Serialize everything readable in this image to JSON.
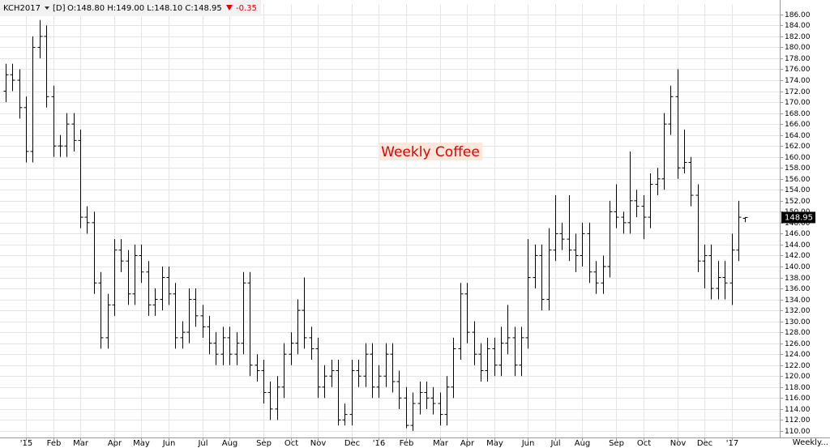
{
  "header": {
    "symbol": "KCH2017",
    "interval": "[D]",
    "quote": "O:148.80 H:149.00 L:148.10 C:148.95",
    "change": "-0.35"
  },
  "chart_data": {
    "type": "ohlc",
    "title": "Weekly Coffee",
    "color": "#000000",
    "grid": true,
    "interval_label": "Weekly...",
    "last_price": 148.95,
    "last_price_label": "148.95",
    "categories": [
      null,
      null,
      null,
      "'15",
      null,
      null,
      null,
      "Feb",
      null,
      null,
      null,
      "Mar",
      null,
      null,
      null,
      null,
      "Apr",
      null,
      null,
      null,
      "May",
      null,
      null,
      null,
      "Jun",
      null,
      null,
      null,
      null,
      "Jul",
      null,
      null,
      null,
      "Aug",
      null,
      null,
      null,
      null,
      "Sep",
      null,
      null,
      null,
      "Oct",
      null,
      null,
      null,
      "Nov",
      null,
      null,
      null,
      null,
      "Dec",
      null,
      null,
      null,
      "'16",
      null,
      null,
      null,
      "Feb",
      null,
      null,
      null,
      null,
      "Mar",
      null,
      null,
      null,
      "Apr",
      null,
      null,
      null,
      "May",
      null,
      null,
      null,
      null,
      "Jun",
      null,
      null,
      null,
      "Jul",
      null,
      null,
      null,
      "Aug",
      null,
      null,
      null,
      null,
      "Sep",
      null,
      null,
      null,
      "Oct",
      null,
      null,
      null,
      null,
      "Nov",
      null,
      null,
      null,
      "Dec",
      null,
      null,
      null,
      "'17",
      null,
      null
    ],
    "open": [
      172,
      175,
      174,
      169,
      161,
      180,
      182,
      171,
      162,
      162,
      166,
      163,
      149,
      148,
      137,
      127,
      133,
      143,
      141,
      135,
      142,
      139,
      133,
      134,
      138,
      135,
      127,
      128,
      134,
      131,
      129,
      126,
      124,
      127,
      124,
      126,
      137,
      122,
      121,
      117,
      114,
      118,
      124,
      126,
      132,
      127,
      125,
      118,
      120,
      121,
      112,
      113,
      121,
      120,
      124,
      118,
      120,
      124,
      119,
      116,
      111,
      115,
      117,
      116,
      115,
      113,
      118,
      125,
      135,
      128,
      124,
      121,
      125,
      122,
      126,
      127,
      122,
      127,
      138,
      142,
      134,
      143,
      146,
      145,
      143,
      142,
      146,
      139,
      137,
      140,
      150,
      149,
      148,
      152,
      151,
      149,
      155,
      156,
      166,
      171,
      158,
      159,
      153,
      141,
      142,
      136,
      138,
      137,
      143,
      148.8
    ],
    "high": [
      177,
      177,
      176,
      171,
      182,
      185,
      184,
      173,
      164,
      168,
      168,
      165,
      151,
      150,
      139,
      135,
      145,
      145,
      143,
      144,
      144,
      141,
      136,
      140,
      140,
      137,
      130,
      136,
      136,
      133,
      131,
      128,
      129,
      129,
      128,
      139,
      139,
      124,
      123,
      119,
      120,
      126,
      128,
      134,
      138,
      129,
      127,
      122,
      123,
      123,
      115,
      123,
      123,
      126,
      126,
      122,
      126,
      126,
      121,
      118,
      117,
      119,
      119,
      118,
      117,
      120,
      127,
      137,
      137,
      130,
      126,
      127,
      127,
      129,
      133,
      129,
      129,
      145,
      144,
      144,
      147,
      153,
      148,
      153,
      146,
      148,
      148,
      141,
      142,
      152,
      155,
      150,
      161,
      154,
      153,
      157,
      158,
      168,
      173,
      176,
      165,
      160,
      155,
      144,
      144,
      141,
      141,
      146,
      152,
      149
    ],
    "low": [
      170,
      172,
      167,
      159,
      159,
      178,
      169,
      160,
      160,
      160,
      161,
      147,
      146,
      135,
      125,
      125,
      131,
      139,
      133,
      133,
      137,
      131,
      131,
      132,
      133,
      125,
      125,
      126,
      129,
      127,
      124,
      122,
      122,
      122,
      122,
      124,
      120,
      119,
      115,
      112,
      112,
      116,
      122,
      124,
      125,
      123,
      116,
      116,
      118,
      111,
      111,
      111,
      118,
      118,
      116,
      116,
      118,
      117,
      114,
      110.5,
      110,
      113,
      114,
      113,
      111,
      111,
      116,
      123,
      126,
      122,
      119,
      119,
      120,
      120,
      124,
      120,
      120,
      125,
      136,
      132,
      132,
      141,
      143,
      141,
      139,
      140,
      137,
      135,
      135,
      138,
      147,
      146,
      146,
      149,
      145,
      147,
      153,
      154,
      164,
      156,
      157,
      151,
      139,
      136,
      134,
      134,
      134,
      133,
      141,
      148.1
    ],
    "close": [
      175,
      174,
      169,
      161,
      180,
      182,
      171,
      162,
      162,
      166,
      163,
      149,
      148,
      137,
      127,
      133,
      143,
      141,
      135,
      142,
      139,
      133,
      134,
      138,
      135,
      127,
      128,
      134,
      131,
      129,
      126,
      124,
      127,
      124,
      126,
      137,
      122,
      121,
      117,
      114,
      118,
      124,
      126,
      132,
      127,
      125,
      118,
      120,
      121,
      112,
      113,
      121,
      120,
      124,
      118,
      120,
      124,
      119,
      116,
      111,
      115,
      117,
      116,
      115,
      113,
      118,
      125,
      135,
      128,
      124,
      121,
      125,
      122,
      126,
      127,
      122,
      127,
      138,
      142,
      134,
      143,
      146,
      145,
      143,
      142,
      146,
      139,
      137,
      140,
      150,
      149,
      148,
      152,
      151,
      149,
      155,
      156,
      166,
      171,
      158,
      159,
      153,
      141,
      142,
      136,
      138,
      137,
      143,
      149,
      148.95
    ],
    "ylim": [
      108.8,
      187.9
    ],
    "yticks": [
      {
        "value": 110,
        "label": "110.00"
      },
      {
        "value": 112,
        "label": "112.00"
      },
      {
        "value": 114,
        "label": "114.00"
      },
      {
        "value": 116,
        "label": "116.00"
      },
      {
        "value": 118,
        "label": "118.00"
      },
      {
        "value": 120,
        "label": "120.00"
      },
      {
        "value": 122,
        "label": "122.00"
      },
      {
        "value": 124,
        "label": "124.00"
      },
      {
        "value": 126,
        "label": "126.00"
      },
      {
        "value": 128,
        "label": "128.00"
      },
      {
        "value": 130,
        "label": "130.00"
      },
      {
        "value": 132,
        "label": "132.00"
      },
      {
        "value": 134,
        "label": "134.00"
      },
      {
        "value": 136,
        "label": "136.00"
      },
      {
        "value": 138,
        "label": "138.00"
      },
      {
        "value": 140,
        "label": "140.00"
      },
      {
        "value": 142,
        "label": "142.00"
      },
      {
        "value": 144,
        "label": "144.00"
      },
      {
        "value": 146,
        "label": "146.00"
      },
      {
        "value": 148,
        "label": "148.00"
      },
      {
        "value": 150,
        "label": "150.00"
      },
      {
        "value": 152,
        "label": "152.00"
      },
      {
        "value": 154,
        "label": "154.00"
      },
      {
        "value": 156,
        "label": "156.00"
      },
      {
        "value": 158,
        "label": "158.00"
      },
      {
        "value": 160,
        "label": "160.00"
      },
      {
        "value": 162,
        "label": "162.00"
      },
      {
        "value": 164,
        "label": "164.00"
      },
      {
        "value": 166,
        "label": "166.00"
      },
      {
        "value": 168,
        "label": "168.00"
      },
      {
        "value": 170,
        "label": "170.00"
      },
      {
        "value": 172,
        "label": "172.00"
      },
      {
        "value": 174,
        "label": "174.00"
      },
      {
        "value": 176,
        "label": "176.00"
      },
      {
        "value": 178,
        "label": "178.00"
      },
      {
        "value": 180,
        "label": "180.00"
      },
      {
        "value": 182,
        "label": "182.00"
      },
      {
        "value": 184,
        "label": "184.00"
      },
      {
        "value": 186,
        "label": "186.00"
      }
    ]
  }
}
